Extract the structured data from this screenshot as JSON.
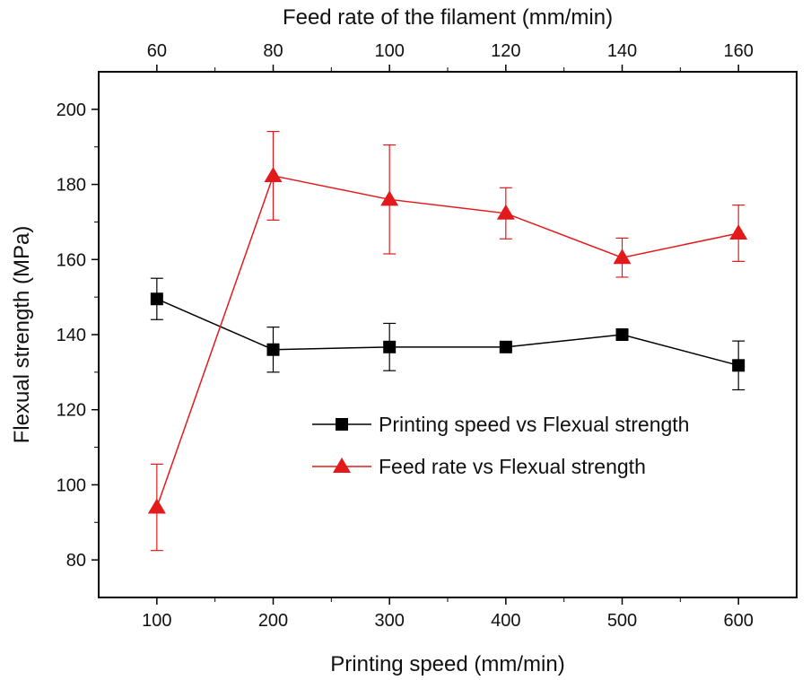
{
  "chart_data": {
    "type": "line",
    "xlabel_bottom": "Printing speed (mm/min)",
    "xlabel_top": "Feed rate of the filament (mm/min)",
    "ylabel": "Flexual strength (MPa)",
    "x_bottom_range": [
      50,
      650
    ],
    "x_bottom_ticks": [
      100,
      200,
      300,
      400,
      500,
      600
    ],
    "x_top_range": [
      50,
      170
    ],
    "x_top_ticks": [
      60,
      80,
      100,
      120,
      140,
      160
    ],
    "y_range": [
      70,
      210
    ],
    "y_ticks": [
      80,
      100,
      120,
      140,
      160,
      180,
      200
    ],
    "legend_position": "center-right",
    "series": [
      {
        "name": "Printing speed vs Flexual strength",
        "axis": "bottom",
        "marker": "square",
        "color": "#000000",
        "x": [
          100,
          200,
          300,
          400,
          500,
          600
        ],
        "y": [
          149.5,
          136.0,
          136.7,
          136.7,
          140.0,
          131.8
        ],
        "error": [
          5.5,
          6.0,
          6.3,
          0.8,
          1.5,
          6.5
        ]
      },
      {
        "name": "Feed rate vs Flexual strength",
        "axis": "top",
        "marker": "triangle",
        "color": "#e31a1c",
        "x": [
          60,
          80,
          100,
          120,
          140,
          160
        ],
        "y": [
          94.0,
          182.3,
          176.0,
          172.3,
          160.5,
          167.0
        ],
        "error": [
          11.5,
          11.8,
          14.5,
          6.8,
          5.2,
          7.5
        ]
      }
    ]
  }
}
